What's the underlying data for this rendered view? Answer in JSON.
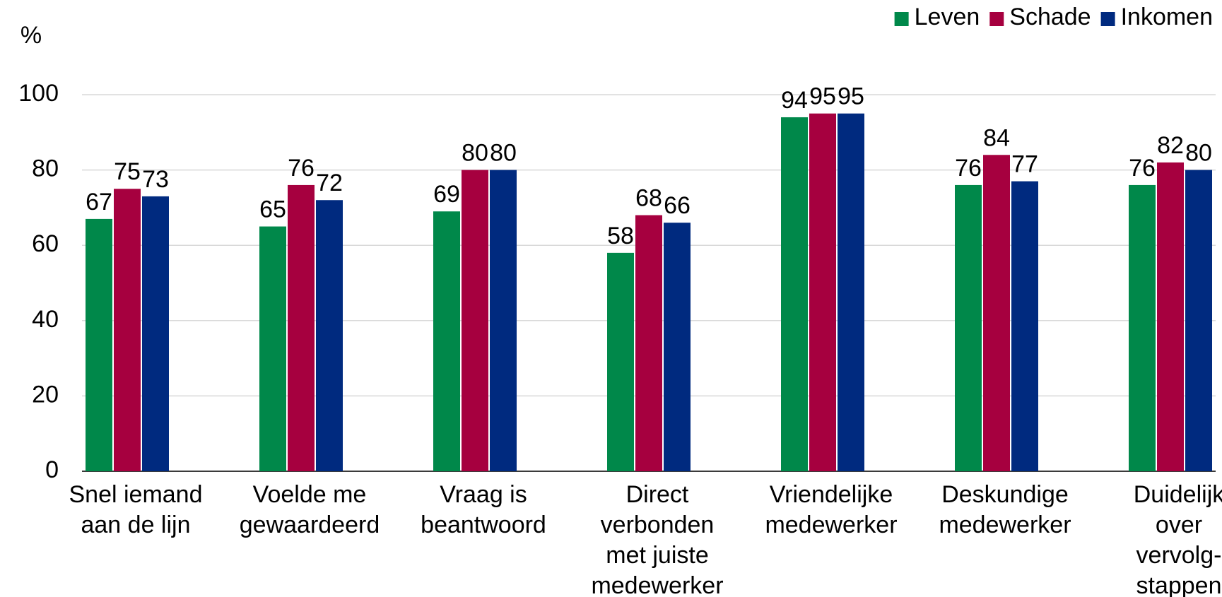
{
  "chart_data": {
    "type": "bar",
    "y_label": "%",
    "categories": [
      [
        "Snel iemand",
        "aan de lijn"
      ],
      [
        "Voelde me",
        "gewaardeerd"
      ],
      [
        "Vraag is",
        "beantwoord"
      ],
      [
        "Direct",
        "verbonden",
        "met juiste",
        "medewerker"
      ],
      [
        "Vriendelijke",
        "medewerker"
      ],
      [
        "Deskundige",
        "medewerker"
      ],
      [
        "Duidelijk",
        "over",
        "vervolg-",
        "stappen"
      ]
    ],
    "series": [
      {
        "name": "Leven",
        "color": "#00884a",
        "values": [
          67,
          65,
          69,
          58,
          94,
          76,
          76
        ]
      },
      {
        "name": "Schade",
        "color": "#a6003f",
        "values": [
          75,
          76,
          80,
          68,
          95,
          84,
          82
        ]
      },
      {
        "name": "Inkomen",
        "color": "#002a7f",
        "values": [
          73,
          72,
          80,
          66,
          95,
          77,
          80
        ]
      }
    ],
    "ylim": [
      0,
      100
    ],
    "yticks": [
      0,
      20,
      40,
      60,
      80,
      100
    ],
    "grid": true,
    "legend": "top-right"
  }
}
